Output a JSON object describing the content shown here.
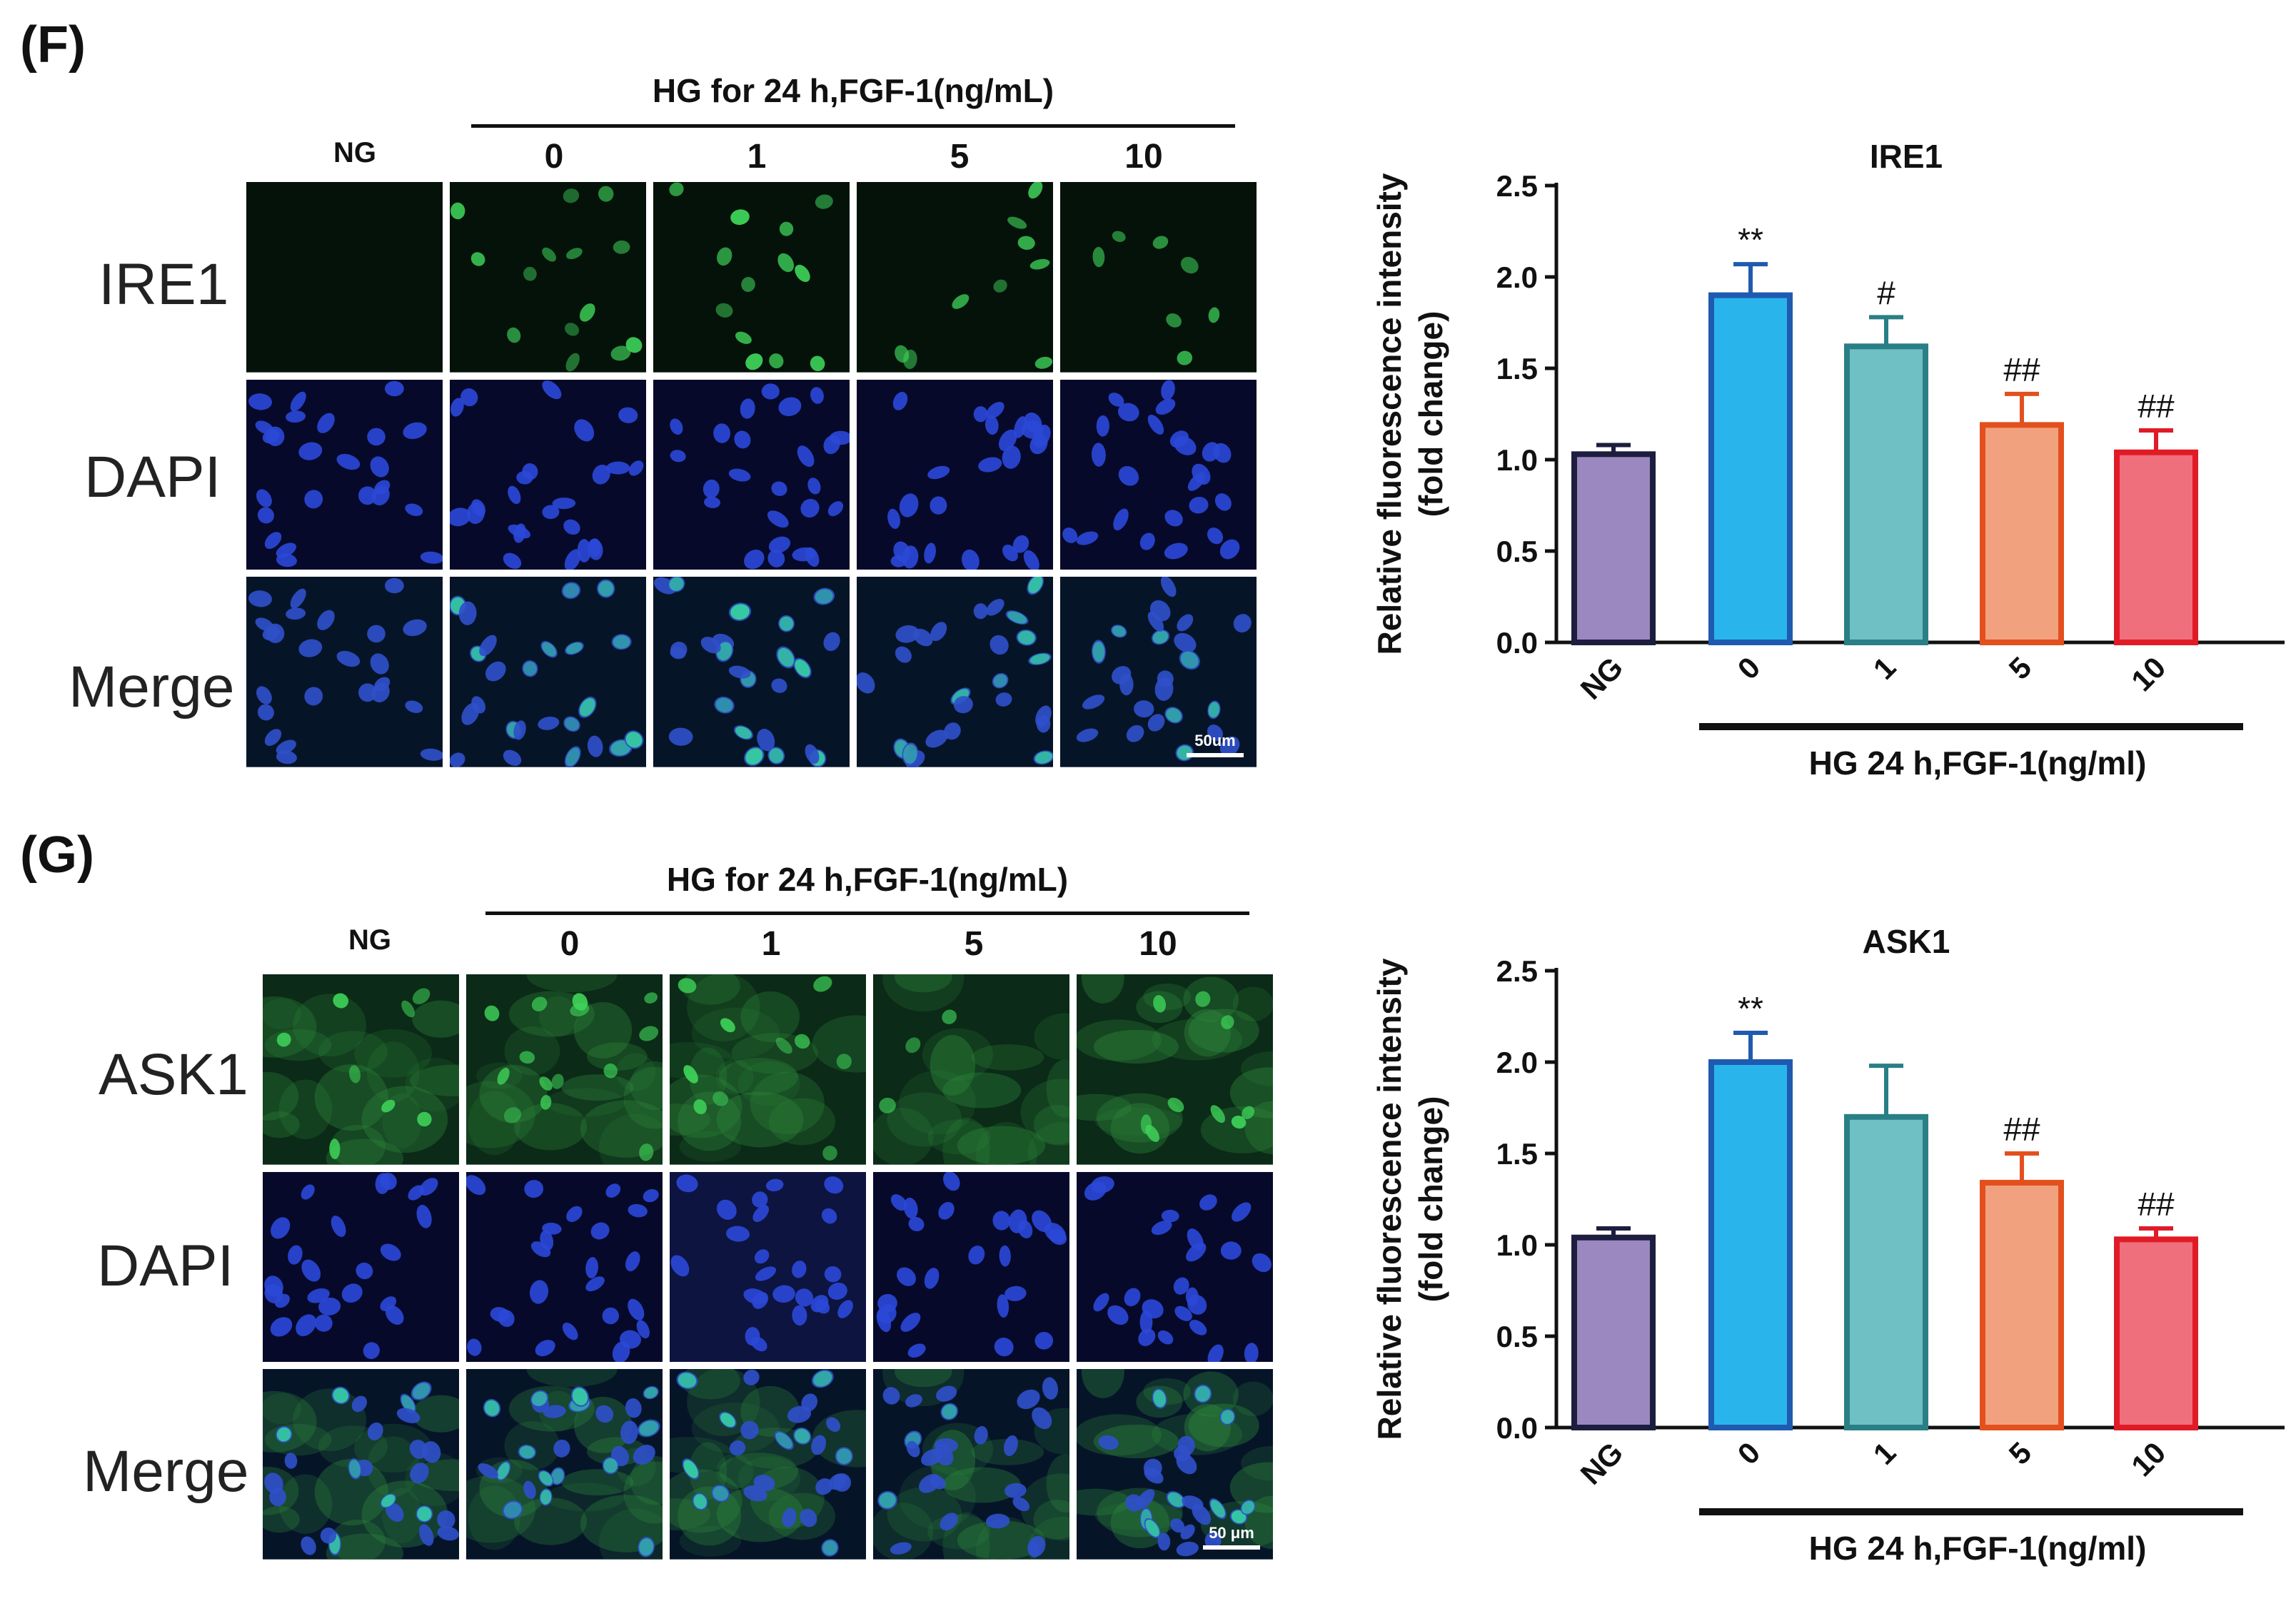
{
  "panels": [
    {
      "id": "F",
      "panel_label": "(F)",
      "micrograph": {
        "header": "HG for 24 h,FGF-1(ng/mL)",
        "column_labels": [
          "NG",
          "0",
          "1",
          "5",
          "10"
        ],
        "row_labels": [
          "IRE1",
          "DAPI",
          "Merge"
        ],
        "scale_bar_label": "50um",
        "green_signal": [
          0.04,
          0.55,
          0.42,
          0.32,
          0.25
        ]
      },
      "chart_data": {
        "type": "bar",
        "title": "IRE1",
        "categories": [
          "NG",
          "0",
          "1",
          "5",
          "10"
        ],
        "values": [
          1.03,
          1.9,
          1.62,
          1.19,
          1.04
        ],
        "errors": [
          0.05,
          0.17,
          0.16,
          0.17,
          0.12
        ],
        "annotations": [
          "",
          "**",
          "#",
          "##",
          "##"
        ],
        "ylabel": "Relative fluorescence intensity",
        "ylabel2": "(fold change)",
        "group_label": "HG 24 h,FGF-1(ng/ml)",
        "ylim": [
          0,
          2.5
        ],
        "yticks": [
          "0.0",
          "0.5",
          "1.0",
          "1.5",
          "2.0",
          "2.5"
        ],
        "colors": {
          "fill": [
            "#9b88c0",
            "#29b5ec",
            "#6fc0c4",
            "#f2a17f",
            "#ef6f7c"
          ],
          "edge": [
            "#1d1d3f",
            "#1f5ab0",
            "#2a7f86",
            "#e2501e",
            "#e01b26"
          ]
        }
      }
    },
    {
      "id": "G",
      "panel_label": "(G)",
      "micrograph": {
        "header": "HG for 24 h,FGF-1(ng/mL)",
        "column_labels": [
          "NG",
          "0",
          "1",
          "5",
          "10"
        ],
        "row_labels": [
          "ASK1",
          "DAPI",
          "Merge"
        ],
        "scale_bar_label": "50 μm",
        "green_signal": [
          0.3,
          0.55,
          0.45,
          0.38,
          0.35
        ]
      },
      "chart_data": {
        "type": "bar",
        "title": "ASK1",
        "categories": [
          "NG",
          "0",
          "1",
          "5",
          "10"
        ],
        "values": [
          1.04,
          2.0,
          1.7,
          1.34,
          1.03
        ],
        "errors": [
          0.05,
          0.16,
          0.28,
          0.16,
          0.06
        ],
        "annotations": [
          "",
          "**",
          "",
          "##",
          "##"
        ],
        "ylabel": "Relative fluorescence intensity",
        "ylabel2": "(fold change)",
        "group_label": "HG 24 h,FGF-1(ng/ml)",
        "ylim": [
          0,
          2.5
        ],
        "yticks": [
          "0.0",
          "0.5",
          "1.0",
          "1.5",
          "2.0",
          "2.5"
        ],
        "colors": {
          "fill": [
            "#9b88c0",
            "#29b5ec",
            "#6fc0c4",
            "#f2a17f",
            "#ef6f7c"
          ],
          "edge": [
            "#1d1d3f",
            "#1f5ab0",
            "#2a7f86",
            "#e2501e",
            "#e01b26"
          ]
        }
      }
    }
  ]
}
